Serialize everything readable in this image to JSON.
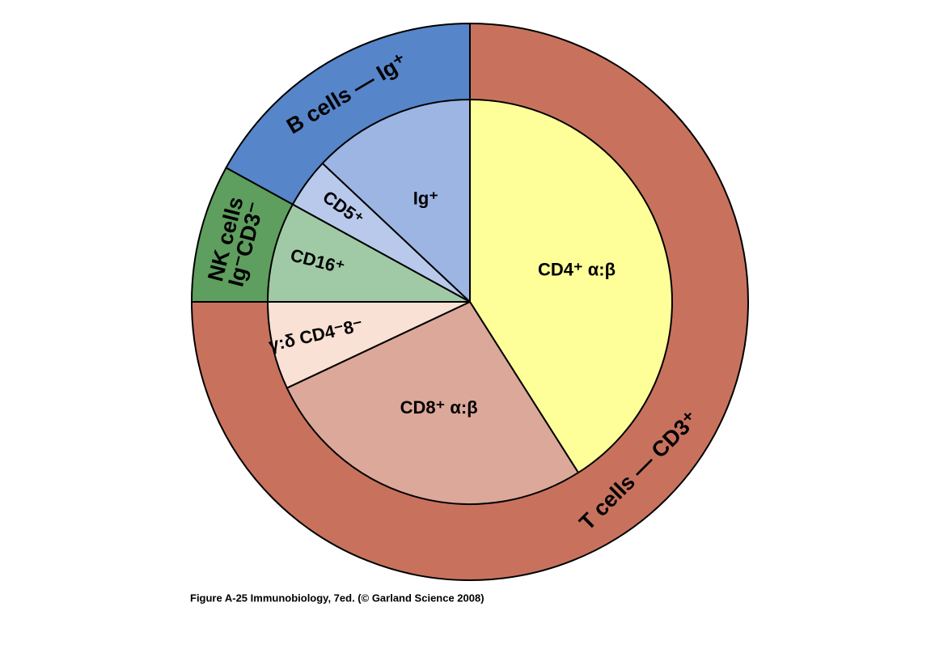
{
  "chart_data": {
    "type": "nested-pie",
    "outer": {
      "labels": [
        [
          "T cells — CD3⁺"
        ],
        [
          "NK cells",
          "Ig⁻CD3⁻"
        ],
        [
          "B cells — Ig⁺"
        ]
      ],
      "values": [
        75,
        8,
        17
      ],
      "colors": [
        "#c8725e",
        "#5e9e5e",
        "#5685c9"
      ]
    },
    "inner": {
      "labels": [
        "CD4⁺ α:β",
        "CD8⁺ α:β",
        "γ:δ CD4⁻8⁻",
        "CD16⁺",
        "CD5⁺",
        "Ig⁺"
      ],
      "values": [
        41,
        27,
        7,
        8,
        4,
        13
      ],
      "colors": [
        "#ffff99",
        "#dca89a",
        "#f9e1d5",
        "#9fcaa5",
        "#b9c9ec",
        "#9db5e3"
      ]
    },
    "caption": "Figure A-25  Immunobiology, 7ed. (© Garland Science 2008)"
  }
}
